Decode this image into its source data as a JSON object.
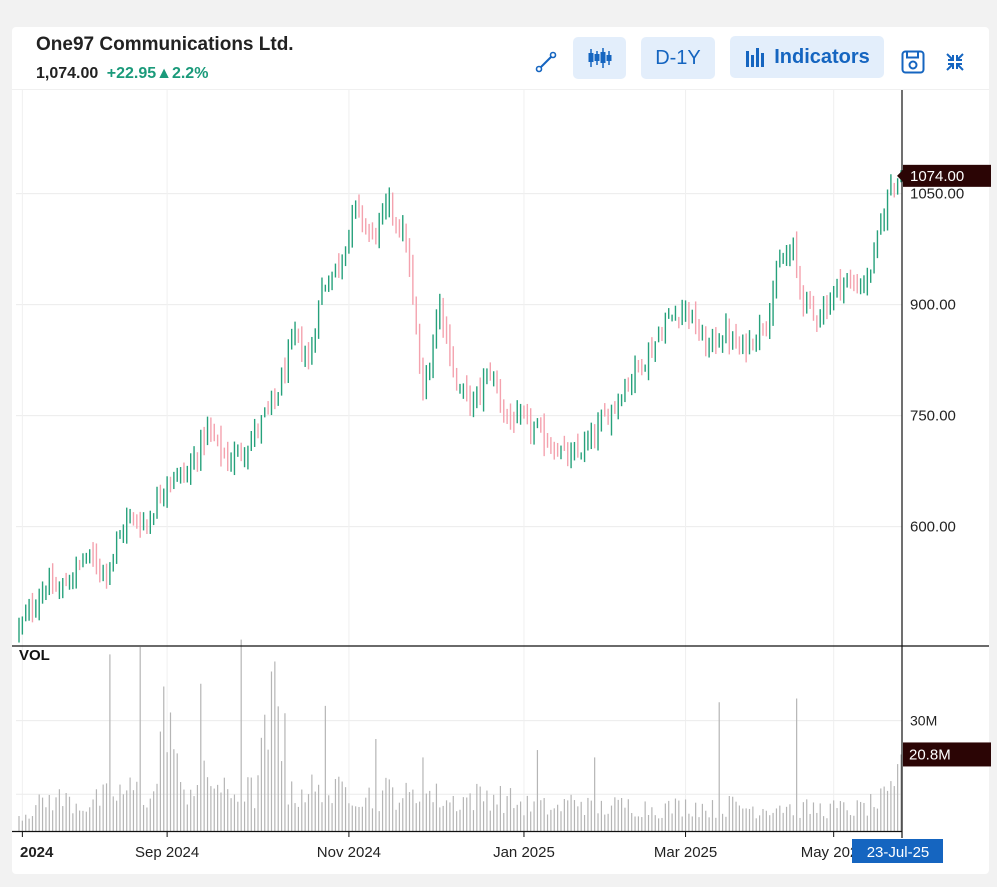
{
  "header": {
    "title": "One97 Communications Ltd.",
    "price": "1,074.00",
    "change": "+22.95▲2.2%"
  },
  "toolbar": {
    "draw_icon": "pencil-line-icon",
    "chart_type_icon": "candlestick-icon",
    "period_label": "D-1Y",
    "indicators_label": "Indicators",
    "indicators_icon": "bar-chart-icon",
    "save_icon": "save-icon",
    "collapse_icon": "collapse-icon"
  },
  "colors": {
    "up": "#26a17b",
    "down": "#f4a2ae",
    "volume": "#b5b5b5",
    "accent": "#1565c0",
    "price_tag": "#2b0505"
  },
  "chart_data": {
    "type": "ohlc",
    "title": "One97 Communications Ltd.",
    "x_tick_labels": [
      "2024",
      "Sep 2024",
      "Nov 2024",
      "Jan 2025",
      "Mar 2025",
      "May 2025"
    ],
    "y_tick_labels": [
      "600.00",
      "750.00",
      "900.00",
      "1050.00"
    ],
    "y_ticks": [
      600,
      750,
      900,
      1050
    ],
    "ylim": [
      440,
      1190
    ],
    "last_price_label": "1074.00",
    "last_date_label": "23-Jul-25",
    "volume": {
      "label": "VOL",
      "y_tick_labels": [
        "30M"
      ],
      "y_ticks": [
        30
      ],
      "ylim": [
        0,
        50
      ],
      "last_label": "20.8M",
      "last_value": 20.8
    },
    "price_anchors": [
      [
        0,
        462
      ],
      [
        8,
        522
      ],
      [
        12,
        512
      ],
      [
        20,
        560
      ],
      [
        26,
        540
      ],
      [
        32,
        610
      ],
      [
        38,
        605
      ],
      [
        44,
        665
      ],
      [
        50,
        672
      ],
      [
        56,
        730
      ],
      [
        62,
        688
      ],
      [
        68,
        712
      ],
      [
        76,
        770
      ],
      [
        82,
        858
      ],
      [
        86,
        822
      ],
      [
        90,
        923
      ],
      [
        95,
        955
      ],
      [
        100,
        1030
      ],
      [
        105,
        990
      ],
      [
        110,
        1036
      ],
      [
        115,
        985
      ],
      [
        120,
        775
      ],
      [
        125,
        905
      ],
      [
        130,
        790
      ],
      [
        135,
        765
      ],
      [
        140,
        812
      ],
      [
        145,
        745
      ],
      [
        150,
        742
      ],
      [
        158,
        712
      ],
      [
        164,
        690
      ],
      [
        170,
        718
      ],
      [
        176,
        760
      ],
      [
        182,
        805
      ],
      [
        188,
        840
      ],
      [
        192,
        876
      ],
      [
        198,
        898
      ],
      [
        204,
        842
      ],
      [
        210,
        862
      ],
      [
        214,
        838
      ],
      [
        218,
        855
      ],
      [
        222,
        882
      ],
      [
        226,
        955
      ],
      [
        230,
        972
      ],
      [
        232,
        920
      ],
      [
        236,
        885
      ],
      [
        240,
        900
      ],
      [
        244,
        932
      ],
      [
        248,
        926
      ],
      [
        252,
        932
      ],
      [
        256,
        1005
      ],
      [
        259,
        1066
      ],
      [
        262,
        1074
      ]
    ],
    "volume_anchors": [
      [
        0,
        4
      ],
      [
        10,
        9
      ],
      [
        20,
        7
      ],
      [
        28,
        10
      ],
      [
        34,
        11
      ],
      [
        40,
        9
      ],
      [
        44,
        36
      ],
      [
        48,
        10
      ],
      [
        52,
        13
      ],
      [
        58,
        14
      ],
      [
        62,
        9
      ],
      [
        66,
        12
      ],
      [
        70,
        10
      ],
      [
        76,
        36
      ],
      [
        80,
        9
      ],
      [
        86,
        12
      ],
      [
        90,
        9
      ],
      [
        94,
        10
      ],
      [
        98,
        12
      ],
      [
        102,
        10
      ],
      [
        106,
        9
      ],
      [
        110,
        11
      ],
      [
        116,
        9
      ],
      [
        122,
        10
      ],
      [
        128,
        8
      ],
      [
        134,
        9
      ],
      [
        140,
        10
      ],
      [
        150,
        7
      ],
      [
        160,
        6
      ],
      [
        166,
        9
      ],
      [
        170,
        6
      ],
      [
        180,
        7
      ],
      [
        190,
        6
      ],
      [
        200,
        7
      ],
      [
        206,
        6
      ],
      [
        212,
        7
      ],
      [
        220,
        6
      ],
      [
        226,
        7
      ],
      [
        232,
        6
      ],
      [
        240,
        6
      ],
      [
        250,
        6
      ],
      [
        256,
        8
      ],
      [
        260,
        10
      ],
      [
        262,
        20.8
      ]
    ],
    "volume_spikes": [
      [
        27,
        48
      ],
      [
        36,
        50
      ],
      [
        54,
        40
      ],
      [
        66,
        52
      ],
      [
        79,
        32
      ],
      [
        91,
        34
      ],
      [
        106,
        25
      ],
      [
        120,
        20
      ],
      [
        154,
        22
      ],
      [
        171,
        20
      ],
      [
        208,
        35
      ],
      [
        231,
        36
      ]
    ]
  }
}
